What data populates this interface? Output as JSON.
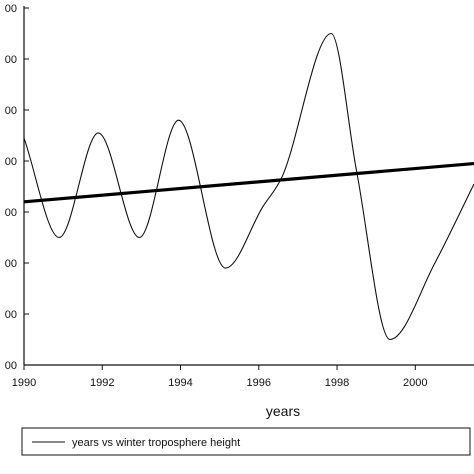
{
  "chart_data": {
    "type": "line",
    "xlabel": "years",
    "ylabel": "",
    "xlim": [
      1990,
      2001.5
    ],
    "ylim": [
      0,
      7
    ],
    "x_ticks": [
      1990,
      1992,
      1994,
      1996,
      1998,
      2000
    ],
    "x_tick_labels": [
      "1990",
      "1992",
      "1994",
      "1996",
      "1998",
      "2000"
    ],
    "y_ticks": [
      0,
      1,
      2,
      3,
      4,
      5,
      6,
      7
    ],
    "y_tick_labels": [
      "00",
      "00",
      "00",
      "00",
      "00",
      "00",
      "00",
      "00"
    ],
    "legend": {
      "placement": "bottom",
      "entries": [
        "years vs winter troposphere height"
      ]
    },
    "series": [
      {
        "name": "years vs winter troposphere height",
        "x": [
          1990,
          1990.9,
          1991.9,
          1992.95,
          1993.95,
          1995.15,
          1996.1,
          1996.6,
          1997.85,
          1998.5,
          1999.35,
          2000.5,
          2001.5
        ],
        "y": [
          4.45,
          2.5,
          4.55,
          2.5,
          4.8,
          1.9,
          3.1,
          3.7,
          6.5,
          3.8,
          0.5,
          2.0,
          3.55
        ]
      },
      {
        "name": "",
        "x": [
          1990,
          2001.5
        ],
        "y": [
          3.2,
          3.95
        ]
      }
    ]
  }
}
